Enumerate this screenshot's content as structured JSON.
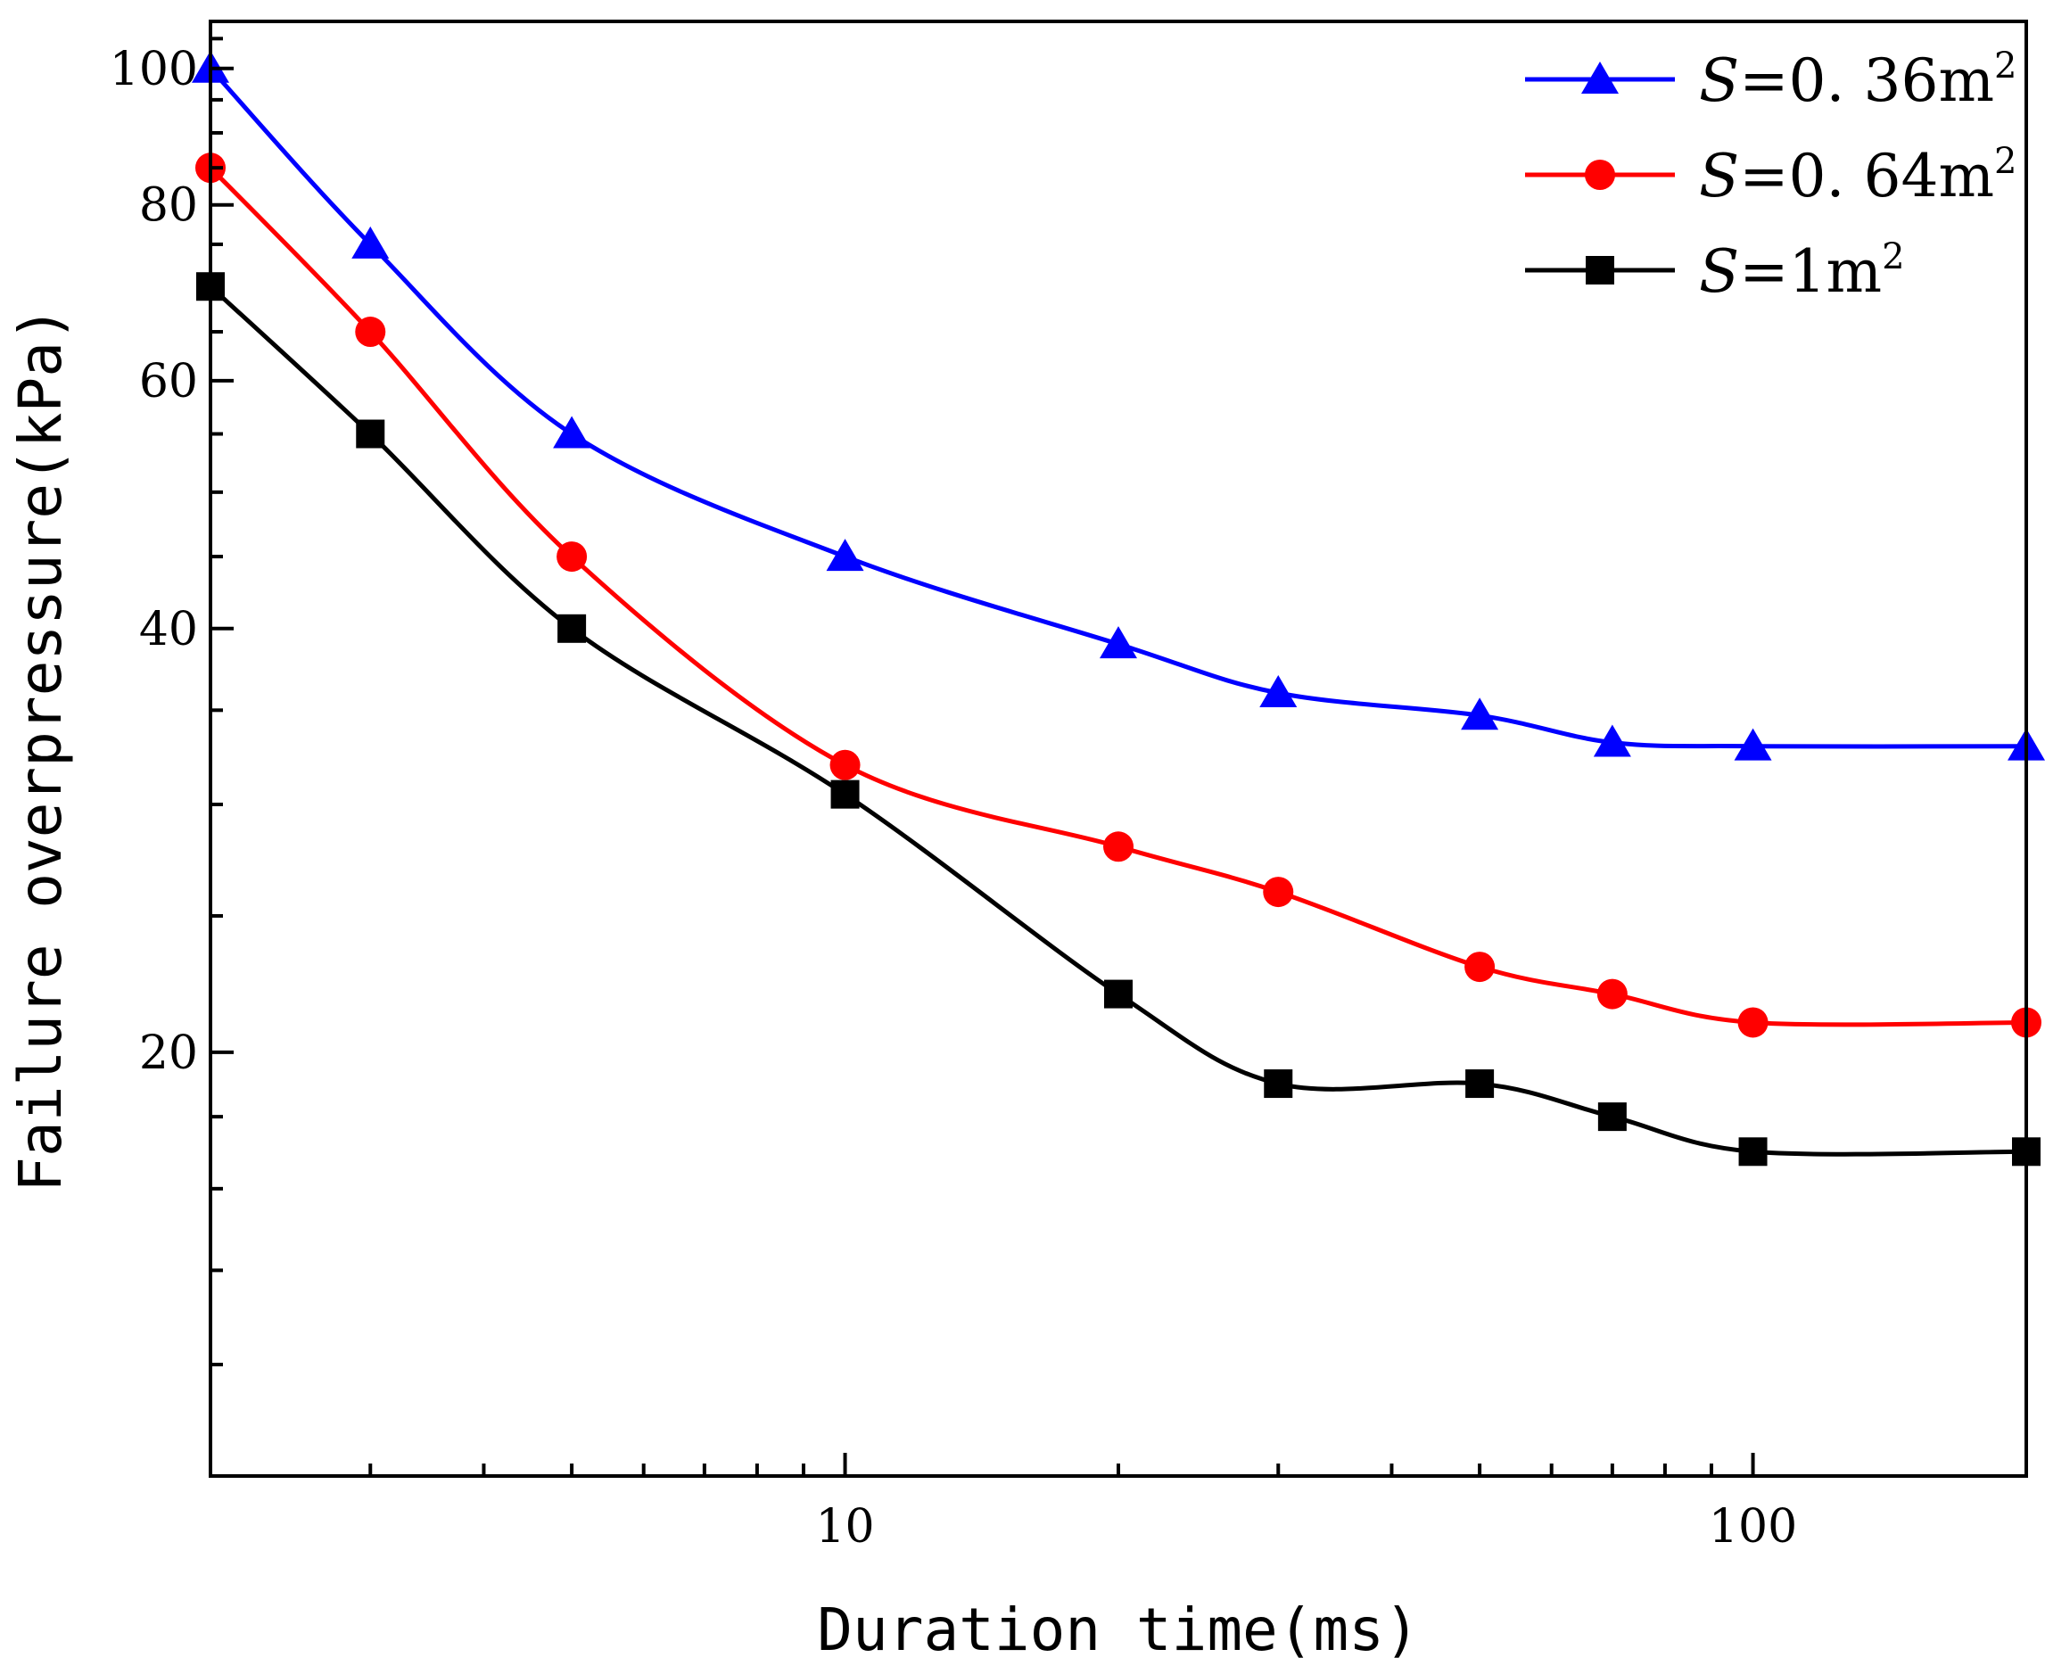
{
  "chart_data": {
    "type": "line",
    "title": "",
    "xlabel": "Duration time(ms)",
    "ylabel": "Failure overpressure(kPa)",
    "x_scale": "log",
    "y_scale": "log",
    "xlim": [
      2,
      200
    ],
    "ylim": [
      10,
      108
    ],
    "x_ticks": [
      10,
      100
    ],
    "x_tick_labels": [
      "10",
      "100"
    ],
    "y_ticks": [
      20,
      40,
      60,
      80,
      100
    ],
    "y_tick_labels": [
      "20",
      "40",
      "60",
      "80",
      "100"
    ],
    "legend_position": "top-right",
    "series": [
      {
        "name": "S=0.36m2",
        "legend_symbol": "S",
        "legend_value": "=0. 36m",
        "legend_sup": "2",
        "color": "#0000ff",
        "marker": "triangle",
        "x": [
          2,
          3,
          5,
          10,
          20,
          30,
          50,
          70,
          100,
          200
        ],
        "y": [
          100,
          75,
          55,
          45,
          39,
          36,
          34.7,
          33.2,
          33,
          33
        ]
      },
      {
        "name": "S=0.64m2",
        "legend_symbol": "S",
        "legend_value": "=0. 64m",
        "legend_sup": "2",
        "color": "#ff0000",
        "marker": "circle",
        "x": [
          2,
          3,
          5,
          10,
          20,
          30,
          50,
          70,
          100,
          200
        ],
        "y": [
          85,
          65,
          45,
          32,
          28,
          26,
          23,
          22,
          21,
          21
        ]
      },
      {
        "name": "S=1m2",
        "legend_symbol": "S",
        "legend_value": "=1m",
        "legend_sup": "2",
        "color": "#000000",
        "marker": "square",
        "x": [
          2,
          3,
          5,
          10,
          20,
          30,
          50,
          70,
          100,
          200
        ],
        "y": [
          70,
          55,
          40,
          30.5,
          22,
          19,
          19,
          18,
          17,
          17
        ]
      }
    ]
  }
}
